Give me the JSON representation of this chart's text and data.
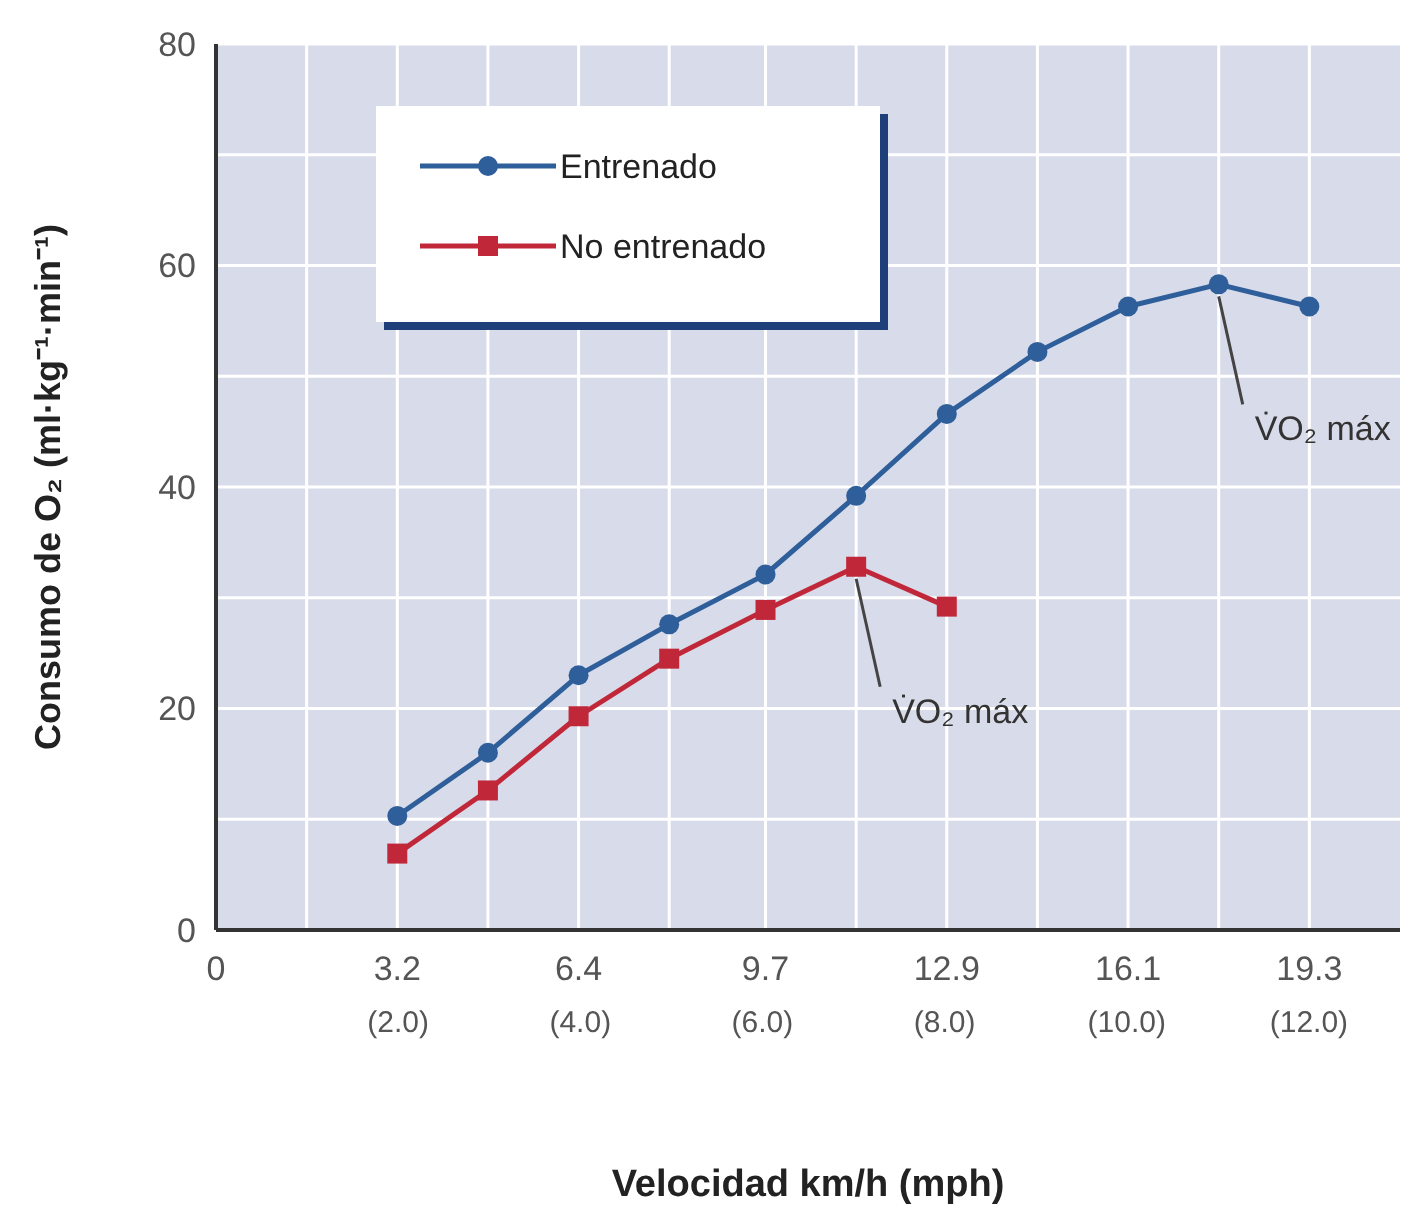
{
  "chart_data": {
    "type": "line",
    "xlabel": "Velocidad km/h (mph)",
    "ylabel": "Consumo de O₂ (ml·kg⁻¹·min⁻¹)",
    "xlim": [
      0,
      20.9
    ],
    "ylim": [
      0,
      80
    ],
    "xticks": [
      0,
      {
        "value": 1.6,
        "label": null
      },
      3.2,
      {
        "value": 4.8,
        "label": null
      },
      6.4,
      {
        "value": 8.0,
        "label": null
      },
      9.7,
      {
        "value": 11.3,
        "label": null
      },
      12.9,
      {
        "value": 14.5,
        "label": null
      },
      16.1,
      {
        "value": 17.7,
        "label": null
      },
      19.3
    ],
    "x2lim": [
      0,
      13
    ],
    "x2ticks": [
      {
        "value": 2,
        "label": "(2.0)"
      },
      {
        "value": 4,
        "label": "(4.0)"
      },
      {
        "value": 6,
        "label": "(6.0)"
      },
      {
        "value": 8,
        "label": "(8.0)"
      },
      {
        "value": 10,
        "label": "(10.0)"
      },
      {
        "value": 12,
        "label": "(12.0)"
      }
    ],
    "yticks": [
      0,
      {
        "value": 10,
        "label": null
      },
      20,
      {
        "value": 30,
        "label": null
      },
      40,
      {
        "value": 50,
        "label": null
      },
      60,
      {
        "value": 70,
        "label": null
      },
      80
    ],
    "grid": true,
    "legend": "top left",
    "line_style": "solid",
    "series": [
      {
        "name": "Entrenado",
        "color": "#2f5f9a",
        "marker": "circle",
        "x": [
          3.2,
          4.8,
          6.4,
          8.0,
          9.7,
          11.3,
          12.9,
          14.5,
          16.1,
          17.7,
          19.3
        ],
        "values": [
          10.3,
          16,
          23,
          27.6,
          32.1,
          39.2,
          46.6,
          52.2,
          56.3,
          58.3,
          56.3
        ]
      },
      {
        "name": "No entrenado",
        "color": "#c0283a",
        "marker": "square",
        "x": [
          3.2,
          4.8,
          6.4,
          8.0,
          9.7,
          11.3,
          12.9
        ],
        "values": [
          6.9,
          12.6,
          19.3,
          24.5,
          28.9,
          32.8,
          29.2
        ]
      }
    ],
    "annotations": [
      {
        "text": "V̇O₂ máx",
        "x": 11.3,
        "y": 32.8
      },
      {
        "text": "V̇O₂ máx",
        "x": 17.7,
        "y": 58.3
      }
    ]
  }
}
